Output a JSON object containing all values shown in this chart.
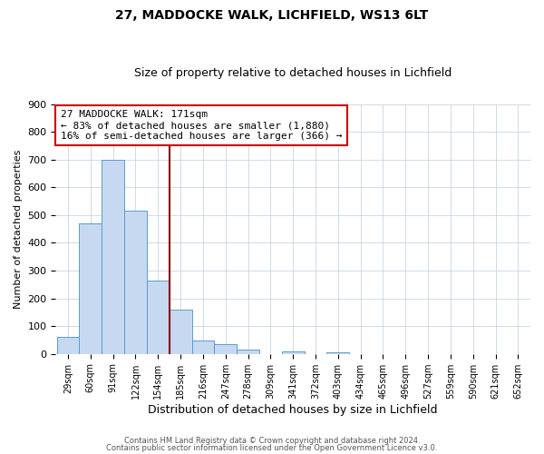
{
  "title": "27, MADDOCKE WALK, LICHFIELD, WS13 6LT",
  "subtitle": "Size of property relative to detached houses in Lichfield",
  "xlabel": "Distribution of detached houses by size in Lichfield",
  "ylabel": "Number of detached properties",
  "bin_labels": [
    "29sqm",
    "60sqm",
    "91sqm",
    "122sqm",
    "154sqm",
    "185sqm",
    "216sqm",
    "247sqm",
    "278sqm",
    "309sqm",
    "341sqm",
    "372sqm",
    "403sqm",
    "434sqm",
    "465sqm",
    "496sqm",
    "527sqm",
    "559sqm",
    "590sqm",
    "621sqm",
    "652sqm"
  ],
  "bar_heights": [
    60,
    470,
    700,
    515,
    265,
    160,
    47,
    35,
    15,
    0,
    10,
    0,
    5,
    0,
    0,
    0,
    0,
    0,
    0,
    0,
    0
  ],
  "bar_color": "#c6d9f0",
  "bar_edge_color": "#5b9bd5",
  "vline_x": 4.5,
  "vline_color": "#8b0000",
  "annotation_line1": "27 MADDOCKE WALK: 171sqm",
  "annotation_line2": "← 83% of detached houses are smaller (1,880)",
  "annotation_line3": "16% of semi-detached houses are larger (366) →",
  "annotation_box_color": "white",
  "annotation_box_edge": "#cc0000",
  "ylim": [
    0,
    900
  ],
  "yticks": [
    0,
    100,
    200,
    300,
    400,
    500,
    600,
    700,
    800,
    900
  ],
  "footer_line1": "Contains HM Land Registry data © Crown copyright and database right 2024.",
  "footer_line2": "Contains public sector information licensed under the Open Government Licence v3.0.",
  "background_color": "#ffffff",
  "grid_color": "#c8d4e4",
  "title_fontsize": 10,
  "subtitle_fontsize": 9,
  "ylabel_fontsize": 8,
  "xlabel_fontsize": 9,
  "tick_fontsize": 8,
  "annotation_fontsize": 8
}
